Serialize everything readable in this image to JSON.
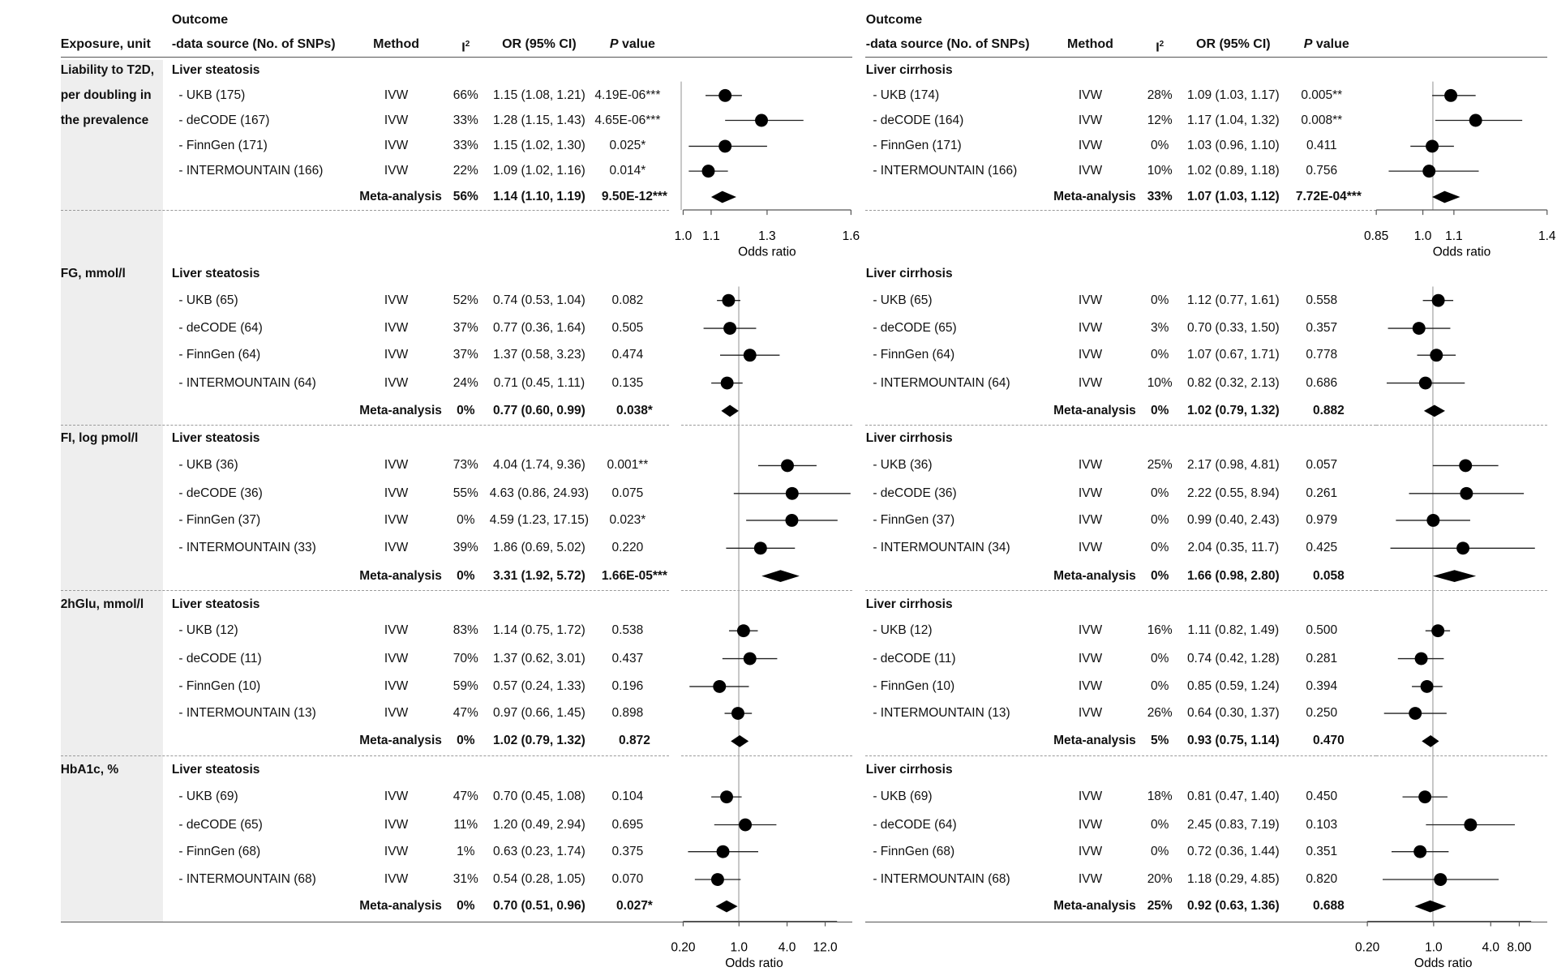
{
  "headers": {
    "left": {
      "outcome_top": "Outcome",
      "exposure": "Exposure, unit",
      "outcome_source": "-data source (No. of SNPs)",
      "method": "Method",
      "i2_base": "I",
      "i2_sup": "2",
      "or": "OR (95% CI)",
      "p_italic": "P",
      "p_rest": " value"
    },
    "right": {
      "outcome_top": "Outcome",
      "outcome_source": "-data source (No. of SNPs)",
      "method": "Method",
      "i2_base": "I",
      "i2_sup": "2",
      "or": "OR (95% CI)",
      "p_italic": "P",
      "p_rest": " value"
    }
  },
  "exposures": [
    {
      "lines": [
        "Liability to T2D,",
        "per doubling in",
        "the prevalence"
      ]
    },
    {
      "lines": [
        "FG, mmol/l"
      ]
    },
    {
      "lines": [
        "FI, log pmol/l"
      ]
    },
    {
      "lines": [
        "2hGlu, mmol/l"
      ]
    },
    {
      "lines": [
        "HbA1c, %"
      ]
    }
  ],
  "chart_data": [
    {
      "type": "forest",
      "outcome": "Liver steatosis",
      "xlabel": "Odds ratio",
      "groups": [
        {
          "axis_ticks": [
            "1.0",
            "1.1",
            "1.3",
            "1.6"
          ],
          "xlim": [
            1.0,
            1.6
          ],
          "reference": 1.0,
          "rows": [
            {
              "source": "- UKB (175)",
              "method": "IVW",
              "i2": "66%",
              "ci_text": "1.15 (1.08, 1.21)",
              "p": "4.19E-06***",
              "or": 1.15,
              "lo": 1.08,
              "hi": 1.21
            },
            {
              "source": "- deCODE (167)",
              "method": "IVW",
              "i2": "33%",
              "ci_text": "1.28 (1.15, 1.43)",
              "p": "4.65E-06***",
              "or": 1.28,
              "lo": 1.15,
              "hi": 1.43
            },
            {
              "source": "- FinnGen (171)",
              "method": "IVW",
              "i2": "33%",
              "ci_text": "1.15 (1.02, 1.30)",
              "p": "0.025*",
              "or": 1.15,
              "lo": 1.02,
              "hi": 1.3
            },
            {
              "source": "- INTERMOUNTAIN (166)",
              "method": "IVW",
              "i2": "22%",
              "ci_text": "1.09 (1.02, 1.16)",
              "p": "0.014*",
              "or": 1.09,
              "lo": 1.02,
              "hi": 1.16
            }
          ],
          "meta": {
            "label": "Meta-analysis",
            "i2": "56%",
            "ci_text": "1.14 (1.10, 1.19)",
            "p": "9.50E-12***",
            "or": 1.14,
            "lo": 1.1,
            "hi": 1.19
          }
        },
        {
          "rows": [
            {
              "source": "- UKB (65)",
              "method": "IVW",
              "i2": "52%",
              "ci_text": "0.74 (0.53, 1.04)",
              "p": "0.082",
              "or": 0.74,
              "lo": 0.53,
              "hi": 1.04
            },
            {
              "source": "- deCODE (64)",
              "method": "IVW",
              "i2": "37%",
              "ci_text": "0.77 (0.36, 1.64)",
              "p": "0.505",
              "or": 0.77,
              "lo": 0.36,
              "hi": 1.64
            },
            {
              "source": "- FinnGen (64)",
              "method": "IVW",
              "i2": "37%",
              "ci_text": "1.37 (0.58, 3.23)",
              "p": "0.474",
              "or": 1.37,
              "lo": 0.58,
              "hi": 3.23
            },
            {
              "source": "- INTERMOUNTAIN (64)",
              "method": "IVW",
              "i2": "24%",
              "ci_text": "0.71 (0.45, 1.11)",
              "p": "0.135",
              "or": 0.71,
              "lo": 0.45,
              "hi": 1.11
            }
          ],
          "meta": {
            "label": "Meta-analysis",
            "i2": "0%",
            "ci_text": "0.77 (0.60, 0.99)",
            "p": "0.038*",
            "or": 0.77,
            "lo": 0.6,
            "hi": 0.99
          }
        },
        {
          "rows": [
            {
              "source": "- UKB (36)",
              "method": "IVW",
              "i2": "73%",
              "ci_text": "4.04 (1.74, 9.36)",
              "p": "0.001**",
              "or": 4.04,
              "lo": 1.74,
              "hi": 9.36
            },
            {
              "source": "- deCODE (36)",
              "method": "IVW",
              "i2": "55%",
              "ci_text": "4.63 (0.86, 24.93)",
              "p": "0.075",
              "or": 4.63,
              "lo": 0.86,
              "hi": 24.93
            },
            {
              "source": "- FinnGen (37)",
              "method": "IVW",
              "i2": "0%",
              "ci_text": "4.59 (1.23, 17.15)",
              "p": "0.023*",
              "or": 4.59,
              "lo": 1.23,
              "hi": 17.15
            },
            {
              "source": "- INTERMOUNTAIN (33)",
              "method": "IVW",
              "i2": "39%",
              "ci_text": "1.86 (0.69, 5.02)",
              "p": "0.220",
              "or": 1.86,
              "lo": 0.69,
              "hi": 5.02
            }
          ],
          "meta": {
            "label": "Meta-analysis",
            "i2": "0%",
            "ci_text": "3.31 (1.92, 5.72)",
            "p": "1.66E-05***",
            "or": 3.31,
            "lo": 1.92,
            "hi": 5.72
          }
        },
        {
          "rows": [
            {
              "source": "- UKB (12)",
              "method": "IVW",
              "i2": "83%",
              "ci_text": "1.14 (0.75, 1.72)",
              "p": "0.538",
              "or": 1.14,
              "lo": 0.75,
              "hi": 1.72
            },
            {
              "source": "- deCODE (11)",
              "method": "IVW",
              "i2": "70%",
              "ci_text": "1.37 (0.62, 3.01)",
              "p": "0.437",
              "or": 1.37,
              "lo": 0.62,
              "hi": 3.01
            },
            {
              "source": "- FinnGen (10)",
              "method": "IVW",
              "i2": "59%",
              "ci_text": "0.57 (0.24, 1.33)",
              "p": "0.196",
              "or": 0.57,
              "lo": 0.24,
              "hi": 1.33
            },
            {
              "source": "- INTERMOUNTAIN (13)",
              "method": "IVW",
              "i2": "47%",
              "ci_text": "0.97 (0.66, 1.45)",
              "p": "0.898",
              "or": 0.97,
              "lo": 0.66,
              "hi": 1.45
            }
          ],
          "meta": {
            "label": "Meta-analysis",
            "i2": "0%",
            "ci_text": "1.02 (0.79, 1.32)",
            "p": "0.872",
            "or": 1.02,
            "lo": 0.79,
            "hi": 1.32
          }
        },
        {
          "rows": [
            {
              "source": "- UKB (69)",
              "method": "IVW",
              "i2": "47%",
              "ci_text": "0.70 (0.45, 1.08)",
              "p": "0.104",
              "or": 0.7,
              "lo": 0.45,
              "hi": 1.08
            },
            {
              "source": "- deCODE (65)",
              "method": "IVW",
              "i2": "11%",
              "ci_text": "1.20 (0.49, 2.94)",
              "p": "0.695",
              "or": 1.2,
              "lo": 0.49,
              "hi": 2.94
            },
            {
              "source": "- FinnGen (68)",
              "method": "IVW",
              "i2": "1%",
              "ci_text": "0.63 (0.23, 1.74)",
              "p": "0.375",
              "or": 0.63,
              "lo": 0.23,
              "hi": 1.74
            },
            {
              "source": "- INTERMOUNTAIN (68)",
              "method": "IVW",
              "i2": "31%",
              "ci_text": "0.54 (0.28, 1.05)",
              "p": "0.070",
              "or": 0.54,
              "lo": 0.28,
              "hi": 1.05
            }
          ],
          "meta": {
            "label": "Meta-analysis",
            "i2": "0%",
            "ci_text": "0.70 (0.51, 0.96)",
            "p": "0.027*",
            "or": 0.7,
            "lo": 0.51,
            "hi": 0.96
          }
        }
      ],
      "bottom_axis": {
        "ticks": [
          "0.20",
          "1.0",
          "4.0",
          "12.0"
        ],
        "xlim": [
          0.2,
          12.0
        ],
        "scale": "log",
        "reference": 1.0
      }
    },
    {
      "type": "forest",
      "outcome": "Liver cirrhosis",
      "xlabel": "Odds ratio",
      "groups": [
        {
          "axis_ticks": [
            "0.85",
            "1.0",
            "1.1",
            "1.4"
          ],
          "xlim": [
            0.85,
            1.4
          ],
          "reference": 1.0,
          "rows": [
            {
              "source": "- UKB (174)",
              "method": "IVW",
              "i2": "28%",
              "ci_text": "1.09 (1.03, 1.17)",
              "p": "0.005**",
              "or": 1.09,
              "lo": 1.03,
              "hi": 1.17
            },
            {
              "source": "- deCODE (164)",
              "method": "IVW",
              "i2": "12%",
              "ci_text": "1.17 (1.04, 1.32)",
              "p": "0.008**",
              "or": 1.17,
              "lo": 1.04,
              "hi": 1.32
            },
            {
              "source": "- FinnGen (171)",
              "method": "IVW",
              "i2": "0%",
              "ci_text": "1.03 (0.96, 1.10)",
              "p": "0.411",
              "or": 1.03,
              "lo": 0.96,
              "hi": 1.1
            },
            {
              "source": "- INTERMOUNTAIN (166)",
              "method": "IVW",
              "i2": "10%",
              "ci_text": "1.02 (0.89, 1.18)",
              "p": "0.756",
              "or": 1.02,
              "lo": 0.89,
              "hi": 1.18
            }
          ],
          "meta": {
            "label": "Meta-analysis",
            "i2": "33%",
            "ci_text": "1.07 (1.03, 1.12)",
            "p": "7.72E-04***",
            "or": 1.07,
            "lo": 1.03,
            "hi": 1.12
          }
        },
        {
          "rows": [
            {
              "source": "- UKB (65)",
              "method": "IVW",
              "i2": "0%",
              "ci_text": "1.12 (0.77, 1.61)",
              "p": "0.558",
              "or": 1.12,
              "lo": 0.77,
              "hi": 1.61
            },
            {
              "source": "- deCODE (65)",
              "method": "IVW",
              "i2": "3%",
              "ci_text": "0.70 (0.33, 1.50)",
              "p": "0.357",
              "or": 0.7,
              "lo": 0.33,
              "hi": 1.5
            },
            {
              "source": "- FinnGen (64)",
              "method": "IVW",
              "i2": "0%",
              "ci_text": "1.07 (0.67, 1.71)",
              "p": "0.778",
              "or": 1.07,
              "lo": 0.67,
              "hi": 1.71
            },
            {
              "source": "- INTERMOUNTAIN (64)",
              "method": "IVW",
              "i2": "10%",
              "ci_text": "0.82 (0.32, 2.13)",
              "p": "0.686",
              "or": 0.82,
              "lo": 0.32,
              "hi": 2.13
            }
          ],
          "meta": {
            "label": "Meta-analysis",
            "i2": "0%",
            "ci_text": "1.02 (0.79, 1.32)",
            "p": "0.882",
            "or": 1.02,
            "lo": 0.79,
            "hi": 1.32
          }
        },
        {
          "rows": [
            {
              "source": "- UKB (36)",
              "method": "IVW",
              "i2": "25%",
              "ci_text": "2.17 (0.98, 4.81)",
              "p": "0.057",
              "or": 2.17,
              "lo": 0.98,
              "hi": 4.81
            },
            {
              "source": "- deCODE (36)",
              "method": "IVW",
              "i2": "0%",
              "ci_text": "2.22 (0.55, 8.94)",
              "p": "0.261",
              "or": 2.22,
              "lo": 0.55,
              "hi": 8.94
            },
            {
              "source": "- FinnGen (37)",
              "method": "IVW",
              "i2": "0%",
              "ci_text": "0.99 (0.40, 2.43)",
              "p": "0.979",
              "or": 0.99,
              "lo": 0.4,
              "hi": 2.43
            },
            {
              "source": "- INTERMOUNTAIN (34)",
              "method": "IVW",
              "i2": "0%",
              "ci_text": "2.04 (0.35, 11.7)",
              "p": "0.425",
              "or": 2.04,
              "lo": 0.35,
              "hi": 11.7
            }
          ],
          "meta": {
            "label": "Meta-analysis",
            "i2": "0%",
            "ci_text": "1.66 (0.98, 2.80)",
            "p": "0.058",
            "or": 1.66,
            "lo": 0.98,
            "hi": 2.8
          }
        },
        {
          "rows": [
            {
              "source": "- UKB (12)",
              "method": "IVW",
              "i2": "16%",
              "ci_text": "1.11 (0.82, 1.49)",
              "p": "0.500",
              "or": 1.11,
              "lo": 0.82,
              "hi": 1.49
            },
            {
              "source": "- deCODE (11)",
              "method": "IVW",
              "i2": "0%",
              "ci_text": "0.74 (0.42, 1.28)",
              "p": "0.281",
              "or": 0.74,
              "lo": 0.42,
              "hi": 1.28
            },
            {
              "source": "- FinnGen (10)",
              "method": "IVW",
              "i2": "0%",
              "ci_text": "0.85 (0.59, 1.24)",
              "p": "0.394",
              "or": 0.85,
              "lo": 0.59,
              "hi": 1.24
            },
            {
              "source": "- INTERMOUNTAIN (13)",
              "method": "IVW",
              "i2": "26%",
              "ci_text": "0.64 (0.30, 1.37)",
              "p": "0.250",
              "or": 0.64,
              "lo": 0.3,
              "hi": 1.37
            }
          ],
          "meta": {
            "label": "Meta-analysis",
            "i2": "5%",
            "ci_text": "0.93 (0.75, 1.14)",
            "p": "0.470",
            "or": 0.93,
            "lo": 0.75,
            "hi": 1.14
          }
        },
        {
          "rows": [
            {
              "source": "- UKB (69)",
              "method": "IVW",
              "i2": "18%",
              "ci_text": "0.81 (0.47, 1.40)",
              "p": "0.450",
              "or": 0.81,
              "lo": 0.47,
              "hi": 1.4
            },
            {
              "source": "- deCODE (64)",
              "method": "IVW",
              "i2": "0%",
              "ci_text": "2.45 (0.83, 7.19)",
              "p": "0.103",
              "or": 2.45,
              "lo": 0.83,
              "hi": 7.19
            },
            {
              "source": "- FinnGen (68)",
              "method": "IVW",
              "i2": "0%",
              "ci_text": "0.72 (0.36, 1.44)",
              "p": "0.351",
              "or": 0.72,
              "lo": 0.36,
              "hi": 1.44
            },
            {
              "source": "- INTERMOUNTAIN (68)",
              "method": "IVW",
              "i2": "20%",
              "ci_text": "1.18 (0.29, 4.85)",
              "p": "0.820",
              "or": 1.18,
              "lo": 0.29,
              "hi": 4.85
            }
          ],
          "meta": {
            "label": "Meta-analysis",
            "i2": "25%",
            "ci_text": "0.92 (0.63, 1.36)",
            "p": "0.688",
            "or": 0.92,
            "lo": 0.63,
            "hi": 1.36
          }
        }
      ],
      "bottom_axis": {
        "ticks": [
          "0.20",
          "1.0",
          "4.0",
          "8.00"
        ],
        "xlim": [
          0.2,
          8.0
        ],
        "scale": "log",
        "reference": 1.0
      }
    }
  ]
}
